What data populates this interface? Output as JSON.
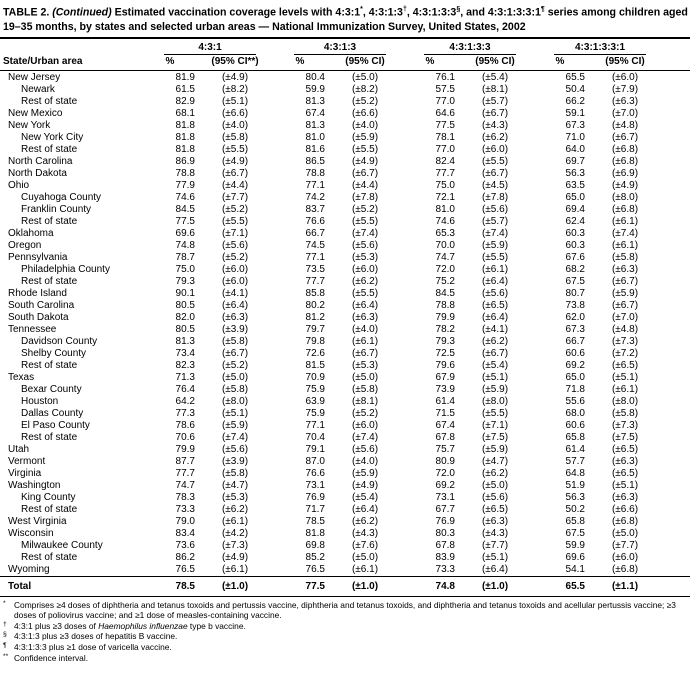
{
  "title": {
    "seg_label": "TABLE 2. ",
    "seg_continued": "(Continued)",
    "seg_a": " Estimated vaccination coverage levels with 4:3:1",
    "sup_a": "*",
    "seg_b": ", 4:3:1:3",
    "sup_b": "†",
    "seg_c": ", 4:3:1:3:3",
    "sup_c": "§",
    "seg_d": ", and 4:3:1:3:3:1",
    "sup_d": "¶",
    "seg_e": " series among children aged 19–35 months, by states and selected urban areas — National Immunization Survey, United States, 2002"
  },
  "table": {
    "header": {
      "state_label": "State/Urban area",
      "groups": [
        {
          "label": "4:3:1",
          "pct": "%",
          "ci": "(95% CI**)"
        },
        {
          "label": "4:3:1:3",
          "pct": "%",
          "ci": "(95% CI)"
        },
        {
          "label": "4:3:1:3:3",
          "pct": "%",
          "ci": "(95% CI)"
        },
        {
          "label": "4:3:1:3:3:1",
          "pct": "%",
          "ci": "(95% CI)"
        }
      ]
    },
    "rows": [
      {
        "name": "New Jersey",
        "indent": 0,
        "values": [
          "81.9",
          "(±4.9)",
          "80.4",
          "(±5.0)",
          "76.1",
          "(±5.4)",
          "65.5",
          "(±6.0)"
        ]
      },
      {
        "name": "Newark",
        "indent": 1,
        "values": [
          "61.5",
          "(±8.2)",
          "59.9",
          "(±8.2)",
          "57.5",
          "(±8.1)",
          "50.4",
          "(±7.9)"
        ]
      },
      {
        "name": "Rest of state",
        "indent": 1,
        "values": [
          "82.9",
          "(±5.1)",
          "81.3",
          "(±5.2)",
          "77.0",
          "(±5.7)",
          "66.2",
          "(±6.3)"
        ]
      },
      {
        "name": "New Mexico",
        "indent": 0,
        "values": [
          "68.1",
          "(±6.6)",
          "67.4",
          "(±6.6)",
          "64.6",
          "(±6.7)",
          "59.1",
          "(±7.0)"
        ]
      },
      {
        "name": "New York",
        "indent": 0,
        "values": [
          "81.8",
          "(±4.0)",
          "81.3",
          "(±4.0)",
          "77.5",
          "(±4.3)",
          "67.3",
          "(±4.8)"
        ]
      },
      {
        "name": "New York City",
        "indent": 1,
        "values": [
          "81.8",
          "(±5.8)",
          "81.0",
          "(±5.9)",
          "78.1",
          "(±6.2)",
          "71.0",
          "(±6.7)"
        ]
      },
      {
        "name": "Rest of state",
        "indent": 1,
        "values": [
          "81.8",
          "(±5.5)",
          "81.6",
          "(±5.5)",
          "77.0",
          "(±6.0)",
          "64.0",
          "(±6.8)"
        ]
      },
      {
        "name": "North Carolina",
        "indent": 0,
        "values": [
          "86.9",
          "(±4.9)",
          "86.5",
          "(±4.9)",
          "82.4",
          "(±5.5)",
          "69.7",
          "(±6.8)"
        ]
      },
      {
        "name": "North Dakota",
        "indent": 0,
        "values": [
          "78.8",
          "(±6.7)",
          "78.8",
          "(±6.7)",
          "77.7",
          "(±6.7)",
          "56.3",
          "(±6.9)"
        ]
      },
      {
        "name": "Ohio",
        "indent": 0,
        "values": [
          "77.9",
          "(±4.4)",
          "77.1",
          "(±4.4)",
          "75.0",
          "(±4.5)",
          "63.5",
          "(±4.9)"
        ]
      },
      {
        "name": "Cuyahoga County",
        "indent": 1,
        "values": [
          "74.6",
          "(±7.7)",
          "74.2",
          "(±7.8)",
          "72.1",
          "(±7.8)",
          "65.0",
          "(±8.0)"
        ]
      },
      {
        "name": "Franklin County",
        "indent": 1,
        "values": [
          "84.5",
          "(±5.2)",
          "83.7",
          "(±5.2)",
          "81.0",
          "(±5.6)",
          "69.4",
          "(±6.8)"
        ]
      },
      {
        "name": "Rest of state",
        "indent": 1,
        "values": [
          "77.5",
          "(±5.5)",
          "76.6",
          "(±5.5)",
          "74.6",
          "(±5.7)",
          "62.4",
          "(±6.1)"
        ]
      },
      {
        "name": "Oklahoma",
        "indent": 0,
        "values": [
          "69.6",
          "(±7.1)",
          "66.7",
          "(±7.4)",
          "65.3",
          "(±7.4)",
          "60.3",
          "(±7.4)"
        ]
      },
      {
        "name": "Oregon",
        "indent": 0,
        "values": [
          "74.8",
          "(±5.6)",
          "74.5",
          "(±5.6)",
          "70.0",
          "(±5.9)",
          "60.3",
          "(±6.1)"
        ]
      },
      {
        "name": "Pennsylvania",
        "indent": 0,
        "values": [
          "78.7",
          "(±5.2)",
          "77.1",
          "(±5.3)",
          "74.7",
          "(±5.5)",
          "67.6",
          "(±5.8)"
        ]
      },
      {
        "name": "Philadelphia County",
        "indent": 1,
        "values": [
          "75.0",
          "(±6.0)",
          "73.5",
          "(±6.0)",
          "72.0",
          "(±6.1)",
          "68.2",
          "(±6.3)"
        ]
      },
      {
        "name": "Rest of state",
        "indent": 1,
        "values": [
          "79.3",
          "(±6.0)",
          "77.7",
          "(±6.2)",
          "75.2",
          "(±6.4)",
          "67.5",
          "(±6.7)"
        ]
      },
      {
        "name": "Rhode Island",
        "indent": 0,
        "values": [
          "90.1",
          "(±4.1)",
          "85.8",
          "(±5.5)",
          "84.5",
          "(±5.6)",
          "80.7",
          "(±5.9)"
        ]
      },
      {
        "name": "South Carolina",
        "indent": 0,
        "values": [
          "80.5",
          "(±6.4)",
          "80.2",
          "(±6.4)",
          "78.8",
          "(±6.5)",
          "73.8",
          "(±6.7)"
        ]
      },
      {
        "name": "South Dakota",
        "indent": 0,
        "values": [
          "82.0",
          "(±6.3)",
          "81.2",
          "(±6.3)",
          "79.9",
          "(±6.4)",
          "62.0",
          "(±7.0)"
        ]
      },
      {
        "name": "Tennessee",
        "indent": 0,
        "values": [
          "80.5",
          "(±3.9)",
          "79.7",
          "(±4.0)",
          "78.2",
          "(±4.1)",
          "67.3",
          "(±4.8)"
        ]
      },
      {
        "name": "Davidson County",
        "indent": 1,
        "values": [
          "81.3",
          "(±5.8)",
          "79.8",
          "(±6.1)",
          "79.3",
          "(±6.2)",
          "66.7",
          "(±7.3)"
        ]
      },
      {
        "name": "Shelby County",
        "indent": 1,
        "values": [
          "73.4",
          "(±6.7)",
          "72.6",
          "(±6.7)",
          "72.5",
          "(±6.7)",
          "60.6",
          "(±7.2)"
        ]
      },
      {
        "name": "Rest of state",
        "indent": 1,
        "values": [
          "82.3",
          "(±5.2)",
          "81.5",
          "(±5.3)",
          "79.6",
          "(±5.4)",
          "69.2",
          "(±6.5)"
        ]
      },
      {
        "name": "Texas",
        "indent": 0,
        "values": [
          "71.3",
          "(±5.0)",
          "70.9",
          "(±5.0)",
          "67.9",
          "(±5.1)",
          "65.0",
          "(±5.1)"
        ]
      },
      {
        "name": "Bexar County",
        "indent": 1,
        "values": [
          "76.4",
          "(±5.8)",
          "75.9",
          "(±5.8)",
          "73.9",
          "(±5.9)",
          "71.8",
          "(±6.1)"
        ]
      },
      {
        "name": "Houston",
        "indent": 1,
        "values": [
          "64.2",
          "(±8.0)",
          "63.9",
          "(±8.1)",
          "61.4",
          "(±8.0)",
          "55.6",
          "(±8.0)"
        ]
      },
      {
        "name": "Dallas County",
        "indent": 1,
        "values": [
          "77.3",
          "(±5.1)",
          "75.9",
          "(±5.2)",
          "71.5",
          "(±5.5)",
          "68.0",
          "(±5.8)"
        ]
      },
      {
        "name": "El Paso County",
        "indent": 1,
        "values": [
          "78.6",
          "(±5.9)",
          "77.1",
          "(±6.0)",
          "67.4",
          "(±7.1)",
          "60.6",
          "(±7.3)"
        ]
      },
      {
        "name": "Rest of state",
        "indent": 1,
        "values": [
          "70.6",
          "(±7.4)",
          "70.4",
          "(±7.4)",
          "67.8",
          "(±7.5)",
          "65.8",
          "(±7.5)"
        ]
      },
      {
        "name": "Utah",
        "indent": 0,
        "values": [
          "79.9",
          "(±5.6)",
          "79.1",
          "(±5.6)",
          "75.7",
          "(±5.9)",
          "61.4",
          "(±6.5)"
        ]
      },
      {
        "name": "Vermont",
        "indent": 0,
        "values": [
          "87.7",
          "(±3.9)",
          "87.0",
          "(±4.0)",
          "80.9",
          "(±4.7)",
          "57.7",
          "(±6.3)"
        ]
      },
      {
        "name": "Virginia",
        "indent": 0,
        "values": [
          "77.7",
          "(±5.8)",
          "76.6",
          "(±5.9)",
          "72.0",
          "(±6.2)",
          "64.8",
          "(±6.5)"
        ]
      },
      {
        "name": "Washington",
        "indent": 0,
        "values": [
          "74.7",
          "(±4.7)",
          "73.1",
          "(±4.9)",
          "69.2",
          "(±5.0)",
          "51.9",
          "(±5.1)"
        ]
      },
      {
        "name": "King County",
        "indent": 1,
        "values": [
          "78.3",
          "(±5.3)",
          "76.9",
          "(±5.4)",
          "73.1",
          "(±5.6)",
          "56.3",
          "(±6.3)"
        ]
      },
      {
        "name": "Rest of state",
        "indent": 1,
        "values": [
          "73.3",
          "(±6.2)",
          "71.7",
          "(±6.4)",
          "67.7",
          "(±6.5)",
          "50.2",
          "(±6.6)"
        ]
      },
      {
        "name": "West Virginia",
        "indent": 0,
        "values": [
          "79.0",
          "(±6.1)",
          "78.5",
          "(±6.2)",
          "76.9",
          "(±6.3)",
          "65.8",
          "(±6.8)"
        ]
      },
      {
        "name": "Wisconsin",
        "indent": 0,
        "values": [
          "83.4",
          "(±4.2)",
          "81.8",
          "(±4.3)",
          "80.3",
          "(±4.3)",
          "67.5",
          "(±5.0)"
        ]
      },
      {
        "name": "Milwaukee County",
        "indent": 1,
        "values": [
          "73.6",
          "(±7.3)",
          "69.8",
          "(±7.6)",
          "67.8",
          "(±7.7)",
          "59.9",
          "(±7.7)"
        ]
      },
      {
        "name": "Rest of state",
        "indent": 1,
        "values": [
          "86.2",
          "(±4.9)",
          "85.2",
          "(±5.0)",
          "83.9",
          "(±5.1)",
          "69.6",
          "(±6.0)"
        ]
      },
      {
        "name": "Wyoming",
        "indent": 0,
        "values": [
          "76.5",
          "(±6.1)",
          "76.5",
          "(±6.1)",
          "73.3",
          "(±6.4)",
          "54.1",
          "(±6.8)"
        ]
      }
    ],
    "total": {
      "name": "Total",
      "indent": 0,
      "values": [
        "78.5",
        "(±1.0)",
        "77.5",
        "(±1.0)",
        "74.8",
        "(±1.0)",
        "65.5",
        "(±1.1)"
      ]
    }
  },
  "footnotes": [
    {
      "symbol": "*",
      "text": "Comprises ≥4 doses of diphtheria and tetanus toxoids and pertussis vaccine, diphtheria and tetanus toxoids, and diphtheria and tetanus toxoids and acellular pertussis vaccine; ≥3 doses of poliovirus vaccine; and ≥1 dose of measles-containing vaccine."
    },
    {
      "symbol": "†",
      "pre": "4:3:1 plus ≥3 doses of ",
      "italic": "Haemophilus influenzae",
      "post": " type b vaccine."
    },
    {
      "symbol": "§",
      "text": "4:3:1:3 plus ≥3 doses of hepatitis B vaccine."
    },
    {
      "symbol": "¶",
      "text": "4:3:1:3:3 plus ≥1 dose of varicella vaccine."
    },
    {
      "symbol": "**",
      "text": "Confidence interval."
    }
  ]
}
